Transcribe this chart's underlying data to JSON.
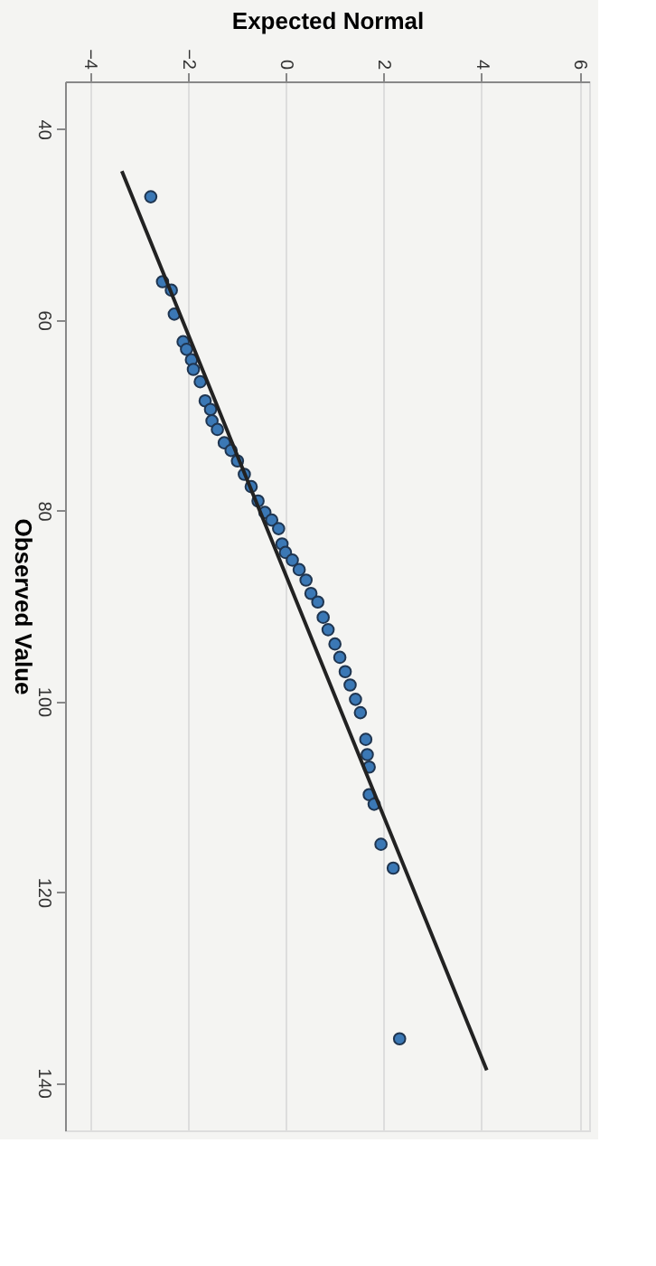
{
  "chart_data": {
    "type": "scatter",
    "xlabel": "Expected Normal",
    "ylabel": "Observed Value",
    "xlim": [
      -4.5,
      6.2
    ],
    "xticks": [
      -4,
      -2,
      0,
      2,
      4,
      6
    ],
    "ylim": [
      145,
      35
    ],
    "yticks": [
      40,
      60,
      80,
      100,
      120,
      140
    ],
    "grid": "x",
    "series": [
      {
        "color": "#3b78b5",
        "marker": "circle",
        "x": [
          -2.75,
          -2.51,
          -2.33,
          -2.27,
          -2.09,
          -2.02,
          -1.92,
          -1.88,
          -1.74,
          -1.64,
          -1.53,
          -1.5,
          -1.39,
          -1.25,
          -1.11,
          -0.98,
          -0.84,
          -0.7,
          -0.56,
          -0.42,
          -0.28,
          -0.14,
          -0.07,
          0,
          0.14,
          0.28,
          0.42,
          0.52,
          0.66,
          0.77,
          0.87,
          1.01,
          1.11,
          1.22,
          1.32,
          1.43,
          1.53,
          1.64,
          1.67,
          1.71,
          1.71,
          1.81,
          1.95,
          2.2,
          2.33
        ],
        "values": [
          47.1,
          56.0,
          56.9,
          59.4,
          62.3,
          63.1,
          64.2,
          65.2,
          66.5,
          68.5,
          69.4,
          70.6,
          71.5,
          72.9,
          73.7,
          74.8,
          76.2,
          77.5,
          79.0,
          80.2,
          81.0,
          81.9,
          83.5,
          84.4,
          85.2,
          86.2,
          87.3,
          88.7,
          89.6,
          91.2,
          92.5,
          94.0,
          95.4,
          96.9,
          98.3,
          99.8,
          101.2,
          104.0,
          105.6,
          106.9,
          109.8,
          110.8,
          115.0,
          117.5,
          135.4
        ]
      },
      {
        "type": "line",
        "color": "#222222",
        "line_style": "solid",
        "marker": "none",
        "x": [
          -3.34,
          4.11
        ],
        "values": [
          44.4,
          138.7
        ]
      }
    ]
  }
}
